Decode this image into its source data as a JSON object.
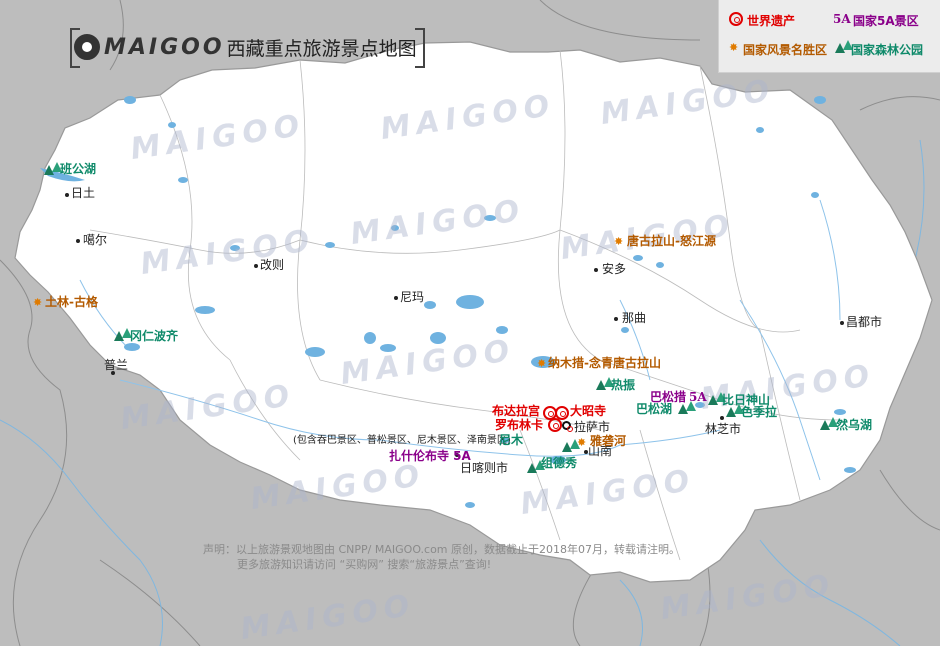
{
  "header": {
    "brand": "MAIGOO",
    "title": "西藏重点旅游景点地图"
  },
  "legend": {
    "heritage": "世界遗产",
    "a5_badge": "5A",
    "a5": "国家5A景区",
    "scenic": "国家风景名胜区",
    "forest": "国家森林公园"
  },
  "cities": {
    "ritu": "日土",
    "gaer": "噶尔",
    "gaize": "改则",
    "nima": "尼玛",
    "anduo": "安多",
    "naqu": "那曲",
    "changdu": "昌都市",
    "pulan": "普兰",
    "lasa": "拉萨市",
    "shannan": "山南",
    "rikaze": "日喀则市",
    "linzhi": "林芝市"
  },
  "sites": {
    "bangong": "班公湖",
    "tulin": "土林-古格",
    "gangren": "冈仁波齐",
    "tanggula": "唐古拉山-怒江源",
    "namuco": "纳木措-念青唐古拉山",
    "rezhen": "热振",
    "potala": "布达拉宫",
    "jokhang": "大昭寺",
    "norbulingka": "罗布林卡",
    "basongco_name": "巴松措",
    "basongco_badge": "5A",
    "basonghu": "巴松湖",
    "biri": "比日神山",
    "sejila": "色季拉",
    "ranwu": "然乌湖",
    "yalong": "雅砻河",
    "zhidexiu": "组德秀",
    "nimu": "尼木",
    "tashilhunpo": "扎什伦布寺 5A",
    "scenic_note": "(包含吞巴景区、普松景区、尼木景区、泽南景区)"
  },
  "watermark": "MAIGOO",
  "footer": {
    "line1": "声明：以上旅游景观地图由 CNPP/ MAIGOO.com 原创，数据截止于2018年07月，转载请注明。",
    "line2": "更多旅游知识请访问 “买购网” 搜索“旅游景点”查询!"
  },
  "colors": {
    "land": "#ffffff",
    "outside": "#bdbdbd",
    "water": "#6fb2e0",
    "border": "#9a9a9a",
    "heritage": "#e10000",
    "a5": "#8a008a",
    "scenic": "#b35a00",
    "forest": "#0f8a6a"
  }
}
